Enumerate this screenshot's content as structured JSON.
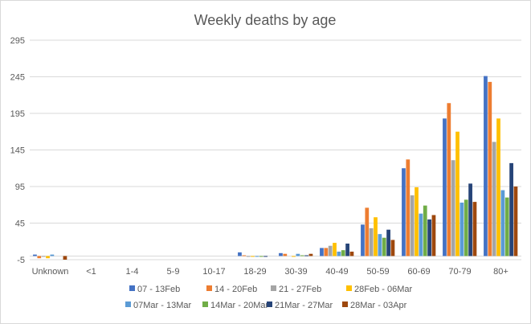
{
  "chart_data": {
    "type": "bar",
    "title": "Weekly deaths by age",
    "xlabel": "",
    "ylabel": "",
    "ylim": [
      -5,
      295
    ],
    "yticks": [
      -5,
      45,
      95,
      145,
      195,
      245,
      295
    ],
    "grid": true,
    "legend_position": "bottom",
    "categories": [
      "Unknown",
      "<1",
      "1-4",
      "5-9",
      "10-17",
      "18-29",
      "30-39",
      "40-49",
      "50-59",
      "60-69",
      "70-79",
      "80+"
    ],
    "series": [
      {
        "name": "07 - 13Feb",
        "color": "#4472c4",
        "values": [
          2,
          0,
          0,
          0,
          0,
          5,
          4,
          11,
          43,
          120,
          188,
          246
        ]
      },
      {
        "name": "14 - 20Feb",
        "color": "#ed7d31",
        "values": [
          -3,
          0,
          0,
          0,
          0,
          1,
          3,
          11,
          66,
          132,
          209,
          238
        ]
      },
      {
        "name": "21 - 27Feb",
        "color": "#a5a5a5",
        "values": [
          -1,
          0,
          0,
          0,
          0,
          -1,
          0,
          14,
          38,
          83,
          131,
          156
        ]
      },
      {
        "name": "28Feb - 06Mar",
        "color": "#ffc000",
        "values": [
          -3,
          0,
          0,
          0,
          0,
          -1,
          -1,
          18,
          53,
          94,
          170,
          188
        ]
      },
      {
        "name": "07Mar - 13Mar",
        "color": "#5b9bd5",
        "values": [
          2,
          0,
          0,
          0,
          0,
          -1,
          3,
          6,
          30,
          58,
          73,
          90
        ]
      },
      {
        "name": "14Mar - 20Mar",
        "color": "#70ad47",
        "values": [
          0,
          0,
          0,
          0,
          0,
          -1,
          1,
          8,
          25,
          69,
          77,
          80
        ]
      },
      {
        "name": "21Mar - 27Mar",
        "color": "#264478",
        "values": [
          0,
          0,
          0,
          0,
          0,
          -1,
          1,
          17,
          36,
          50,
          99,
          127
        ]
      },
      {
        "name": "28Mar - 03Apr",
        "color": "#9e480e",
        "values": [
          -5,
          0,
          0,
          0,
          0,
          0,
          3,
          6,
          22,
          56,
          74,
          95
        ]
      }
    ]
  }
}
